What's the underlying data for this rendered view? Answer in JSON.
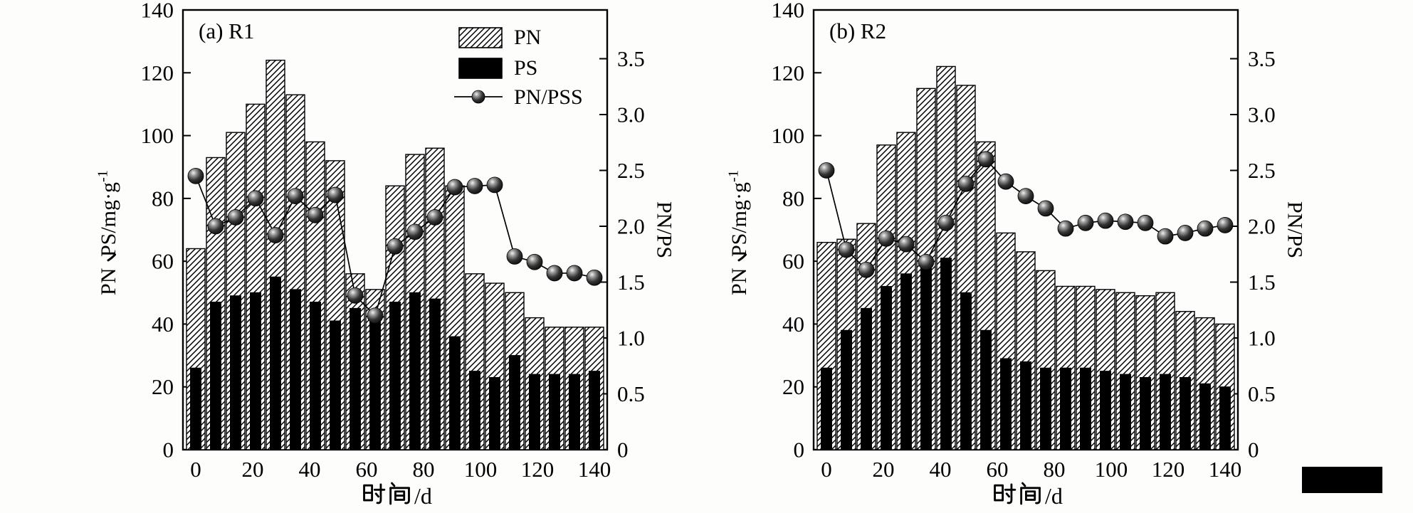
{
  "figure": {
    "background_color": "#fdfdfc",
    "ink_color": "#000000",
    "legend": {
      "position": "top-right-inside-panel-a",
      "entries": [
        {
          "label": "PN",
          "swatch": "hatched-bar"
        },
        {
          "label": "PS",
          "swatch": "solid-black-bar"
        },
        {
          "label": "PN/PSS",
          "swatch": "line-with-ball-marker"
        }
      ]
    },
    "footer_marker": {
      "shape": "black-rectangle",
      "color": "#000000"
    }
  },
  "chart_data": [
    {
      "type": "bar+line",
      "title": "(a) R1",
      "xlabel": "时间/d",
      "ylabel_left": "PN、PS/mg·g⁻¹",
      "ylabel_right": "PN/PS",
      "x_days": [
        0,
        7,
        14,
        21,
        28,
        35,
        42,
        49,
        56,
        63,
        70,
        77,
        84,
        91,
        98,
        105,
        112,
        119,
        126,
        133,
        140
      ],
      "series": [
        {
          "name": "PN",
          "type": "bar",
          "style": "hatched",
          "axis": "left",
          "values": [
            64,
            93,
            101,
            110,
            124,
            113,
            98,
            92,
            56,
            51,
            84,
            94,
            96,
            84,
            56,
            53,
            50,
            42,
            39,
            39,
            39
          ]
        },
        {
          "name": "PS",
          "type": "bar",
          "style": "solid-black",
          "axis": "left",
          "values": [
            26,
            47,
            49,
            50,
            55,
            51,
            47,
            41,
            45,
            42,
            47,
            50,
            48,
            36,
            25,
            23,
            30,
            24,
            24,
            24,
            25
          ]
        },
        {
          "name": "PN/PSS",
          "type": "line",
          "style": "ball-marker",
          "axis": "right",
          "values": [
            2.45,
            2.0,
            2.08,
            2.25,
            1.92,
            2.27,
            2.1,
            2.28,
            1.38,
            1.2,
            1.82,
            1.95,
            2.08,
            2.35,
            2.36,
            2.37,
            1.73,
            1.68,
            1.58,
            1.58,
            1.54
          ]
        }
      ],
      "ylim_left": [
        0,
        140
      ],
      "yticks_left": [
        0,
        20,
        40,
        60,
        80,
        100,
        120,
        140
      ],
      "ylim_right": [
        0,
        3.94
      ],
      "yticks_right": [
        "0",
        "0.5",
        "1.0",
        "1.5",
        "2.0",
        "2.5",
        "3.0",
        "3.5"
      ],
      "xticks": [
        0,
        20,
        40,
        60,
        80,
        100,
        120,
        140
      ],
      "grid": false,
      "legend_in_panel": true
    },
    {
      "type": "bar+line",
      "title": "(b) R2",
      "xlabel": "时间/d",
      "ylabel_left": "PN、PS/mg·g⁻¹",
      "ylabel_right": "PN/PS",
      "x_days": [
        0,
        7,
        14,
        21,
        28,
        35,
        42,
        49,
        56,
        63,
        70,
        77,
        84,
        91,
        98,
        105,
        112,
        119,
        126,
        133,
        140
      ],
      "series": [
        {
          "name": "PN",
          "type": "bar",
          "style": "hatched",
          "axis": "left",
          "values": [
            66,
            67,
            72,
            97,
            101,
            115,
            122,
            116,
            98,
            69,
            63,
            57,
            52,
            52,
            51,
            50,
            49,
            50,
            44,
            42,
            40
          ]
        },
        {
          "name": "PS",
          "type": "bar",
          "style": "solid-black",
          "axis": "left",
          "values": [
            26,
            38,
            45,
            52,
            56,
            61,
            61,
            50,
            38,
            29,
            28,
            26,
            26,
            26,
            25,
            24,
            23,
            24,
            23,
            21,
            20
          ]
        },
        {
          "name": "PN/PSS",
          "type": "line",
          "style": "ball-marker",
          "axis": "right",
          "values": [
            2.5,
            1.79,
            1.61,
            1.89,
            1.84,
            1.68,
            2.03,
            2.38,
            2.6,
            2.4,
            2.27,
            2.16,
            1.98,
            2.03,
            2.05,
            2.04,
            2.03,
            1.91,
            1.94,
            1.98,
            2.01
          ]
        }
      ],
      "ylim_left": [
        0,
        140
      ],
      "yticks_left": [
        0,
        20,
        40,
        60,
        80,
        100,
        120,
        140
      ],
      "ylim_right": [
        0,
        3.94
      ],
      "yticks_right": [
        "0",
        "0.5",
        "1.0",
        "1.5",
        "2.0",
        "2.5",
        "3.0",
        "3.5"
      ],
      "xticks": [
        0,
        20,
        40,
        60,
        80,
        100,
        120,
        140
      ],
      "grid": false,
      "legend_in_panel": false
    }
  ]
}
